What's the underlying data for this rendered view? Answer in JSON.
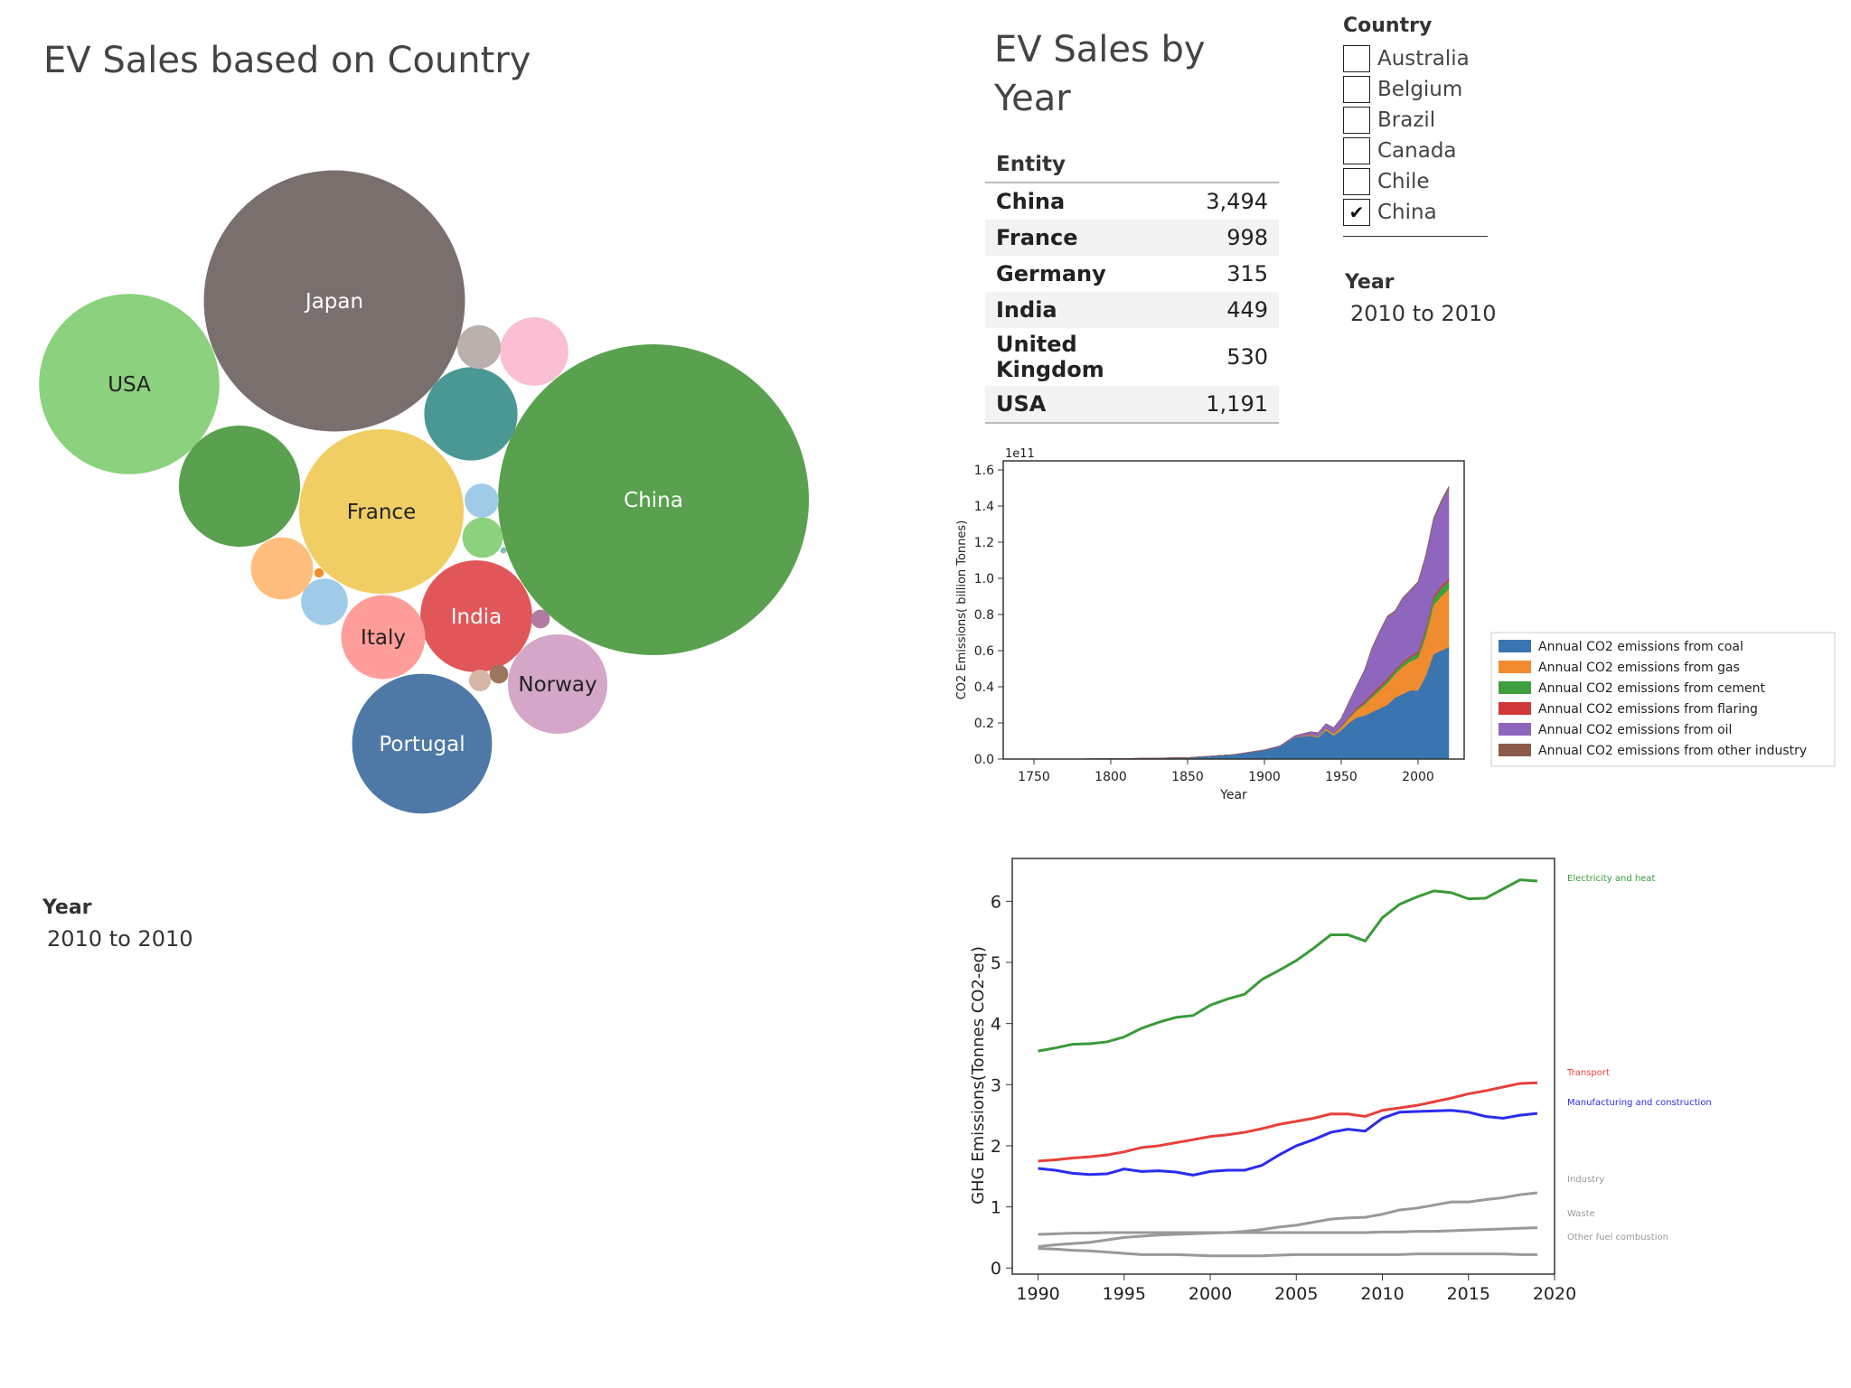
{
  "bubble_panel": {
    "title": "EV Sales based on Country",
    "year_label": "Year",
    "year_value": "2010 to 2010"
  },
  "table_panel": {
    "title_line1": "EV Sales by",
    "title_line2": "Year",
    "column_header": "Entity"
  },
  "country_filter": {
    "label": "Country",
    "items": [
      {
        "name": "Australia",
        "checked": false
      },
      {
        "name": "Belgium",
        "checked": false
      },
      {
        "name": "Brazil",
        "checked": false
      },
      {
        "name": "Canada",
        "checked": false
      },
      {
        "name": "Chile",
        "checked": false
      },
      {
        "name": "China",
        "checked": true
      }
    ],
    "check_glyph": "✔"
  },
  "year_filter": {
    "label": "Year",
    "value": "2010 to 2010"
  },
  "chart_data": [
    {
      "type": "bubble",
      "title": "EV Sales based on Country",
      "bubbles": [
        {
          "label": "China",
          "color": "#59a14f",
          "text_color": "#ffffff",
          "relative_size": 1.0
        },
        {
          "label": "Japan",
          "color": "#79706e",
          "text_color": "#ffffff",
          "relative_size": 0.84
        },
        {
          "label": "USA",
          "color": "#8cd17d",
          "text_color": "#222222",
          "relative_size": 0.58
        },
        {
          "label": "France",
          "color": "#f1ce63",
          "text_color": "#222222",
          "relative_size": 0.53
        },
        {
          "label": "Portugal",
          "color": "#4e79a7",
          "text_color": "#ffffff",
          "relative_size": 0.45
        },
        {
          "label": "India",
          "color": "#e15759",
          "text_color": "#ffffff",
          "relative_size": 0.36
        },
        {
          "label": "Norway",
          "color": "#d4a6c8",
          "text_color": "#222222",
          "relative_size": 0.32
        },
        {
          "label": "Italy",
          "color": "#ff9d9a",
          "text_color": "#222222",
          "relative_size": 0.27
        },
        {
          "label": "",
          "color": "#59a14f",
          "relative_size": 0.39
        },
        {
          "label": "",
          "color": "#499894",
          "relative_size": 0.3
        },
        {
          "label": "",
          "color": "#fabfd2",
          "relative_size": 0.22
        },
        {
          "label": "",
          "color": "#bab0ac",
          "relative_size": 0.14
        },
        {
          "label": "",
          "color": "#ffbe7d",
          "relative_size": 0.2
        },
        {
          "label": "",
          "color": "#a0cbe8",
          "relative_size": 0.15
        },
        {
          "label": "",
          "color": "#a0cbe8",
          "relative_size": 0.11
        },
        {
          "label": "",
          "color": "#8cd17d",
          "relative_size": 0.13
        },
        {
          "label": "",
          "color": "#b07aa1",
          "relative_size": 0.06
        },
        {
          "label": "",
          "color": "#9c755f",
          "relative_size": 0.06
        },
        {
          "label": "",
          "color": "#d7b5a6",
          "relative_size": 0.07
        },
        {
          "label": "",
          "color": "#f28e2b",
          "relative_size": 0.03
        },
        {
          "label": "",
          "color": "#86bcb6",
          "relative_size": 0.02
        }
      ]
    },
    {
      "type": "table",
      "title": "EV Sales by Year",
      "columns": [
        "Entity",
        ""
      ],
      "rows": [
        {
          "entity": "China",
          "value": "3,494"
        },
        {
          "entity": "France",
          "value": "998"
        },
        {
          "entity": "Germany",
          "value": "315"
        },
        {
          "entity": "India",
          "value": "449"
        },
        {
          "entity": "United Kingdom",
          "value": "530"
        },
        {
          "entity": "USA",
          "value": "1,191"
        }
      ]
    },
    {
      "type": "area",
      "stacked": true,
      "title": "",
      "xlabel": "Year",
      "ylabel": "CO2 Emissions( billion Tonnes)",
      "y_offset_label": "1e11",
      "xlim": [
        1730,
        2030
      ],
      "ylim": [
        0,
        1.65
      ],
      "x_ticks": [
        1750,
        1800,
        1850,
        1900,
        1950,
        2000
      ],
      "y_ticks": [
        "0.0",
        "0.2",
        "0.4",
        "0.6",
        "0.8",
        "1.0",
        "1.2",
        "1.4",
        "1.6"
      ],
      "legend_position": "right",
      "x": [
        1750,
        1800,
        1850,
        1880,
        1900,
        1910,
        1920,
        1930,
        1935,
        1940,
        1945,
        1950,
        1955,
        1960,
        1965,
        1970,
        1975,
        1980,
        1985,
        1990,
        1995,
        2000,
        2005,
        2010,
        2015,
        2020
      ],
      "series": [
        {
          "name": "Annual CO2 emissions from coal",
          "color": "#3a75b0",
          "values": [
            0,
            0.002,
            0.008,
            0.025,
            0.05,
            0.07,
            0.12,
            0.13,
            0.12,
            0.16,
            0.13,
            0.16,
            0.2,
            0.23,
            0.24,
            0.26,
            0.28,
            0.3,
            0.34,
            0.36,
            0.38,
            0.38,
            0.46,
            0.58,
            0.6,
            0.62
          ]
        },
        {
          "name": "Annual CO2 emissions from gas",
          "color": "#f08c2f",
          "values": [
            0,
            0,
            0,
            0,
            0,
            0,
            0.002,
            0.005,
            0.006,
            0.008,
            0.01,
            0.015,
            0.025,
            0.04,
            0.06,
            0.08,
            0.1,
            0.12,
            0.13,
            0.15,
            0.16,
            0.18,
            0.22,
            0.27,
            0.3,
            0.32
          ]
        },
        {
          "name": "Annual CO2 emissions from cement",
          "color": "#3f9f3f",
          "values": [
            0,
            0,
            0,
            0,
            0,
            0,
            0,
            0.001,
            0.002,
            0.002,
            0.003,
            0.004,
            0.006,
            0.008,
            0.01,
            0.013,
            0.015,
            0.017,
            0.018,
            0.02,
            0.023,
            0.026,
            0.03,
            0.04,
            0.045,
            0.045
          ]
        },
        {
          "name": "Annual CO2 emissions from flaring",
          "color": "#d03838",
          "values": [
            0,
            0,
            0,
            0,
            0,
            0,
            0,
            0,
            0,
            0.001,
            0.001,
            0.002,
            0.004,
            0.006,
            0.008,
            0.01,
            0.01,
            0.01,
            0.008,
            0.008,
            0.008,
            0.01,
            0.012,
            0.012,
            0.012,
            0.012
          ]
        },
        {
          "name": "Annual CO2 emissions from oil",
          "color": "#8f66bd",
          "values": [
            0,
            0,
            0,
            0,
            0.001,
            0.003,
            0.008,
            0.015,
            0.018,
            0.025,
            0.03,
            0.045,
            0.08,
            0.12,
            0.17,
            0.25,
            0.3,
            0.34,
            0.32,
            0.35,
            0.36,
            0.38,
            0.4,
            0.42,
            0.46,
            0.5
          ]
        },
        {
          "name": "Annual CO2 emissions from other industry",
          "color": "#8c5a4a",
          "values": [
            0,
            0,
            0,
            0,
            0,
            0,
            0,
            0,
            0,
            0,
            0,
            0.001,
            0.002,
            0.002,
            0.003,
            0.004,
            0.004,
            0.005,
            0.005,
            0.006,
            0.006,
            0.007,
            0.008,
            0.01,
            0.012,
            0.013
          ]
        }
      ]
    },
    {
      "type": "line",
      "title": "",
      "xlabel": "",
      "ylabel": "GHG Emissions(Tonnes CO2-eq)",
      "xlim": [
        1988.5,
        2020
      ],
      "ylim": [
        -0.1,
        6.7
      ],
      "x_ticks": [
        1990,
        1995,
        2000,
        2005,
        2010,
        2015,
        2020
      ],
      "y_ticks": [
        0,
        1,
        2,
        3,
        4,
        5,
        6
      ],
      "x": [
        1990,
        1991,
        1992,
        1993,
        1994,
        1995,
        1996,
        1997,
        1998,
        1999,
        2000,
        2001,
        2002,
        2003,
        2004,
        2005,
        2006,
        2007,
        2008,
        2009,
        2010,
        2011,
        2012,
        2013,
        2014,
        2015,
        2016,
        2017,
        2018,
        2019
      ],
      "series": [
        {
          "name": "Electricity and heat",
          "color": "#3a9a3a",
          "values": [
            3.55,
            3.6,
            3.66,
            3.67,
            3.7,
            3.78,
            3.92,
            4.02,
            4.1,
            4.13,
            4.3,
            4.4,
            4.48,
            4.72,
            4.87,
            5.03,
            5.23,
            5.45,
            5.45,
            5.35,
            5.73,
            5.95,
            6.07,
            6.17,
            6.14,
            6.04,
            6.05,
            6.2,
            6.35,
            6.33
          ]
        },
        {
          "name": "Transport",
          "color": "#e8403a",
          "values": [
            1.75,
            1.77,
            1.8,
            1.82,
            1.85,
            1.9,
            1.97,
            2.0,
            2.05,
            2.1,
            2.15,
            2.18,
            2.22,
            2.28,
            2.35,
            2.4,
            2.45,
            2.52,
            2.52,
            2.48,
            2.58,
            2.62,
            2.66,
            2.72,
            2.78,
            2.85,
            2.9,
            2.96,
            3.02,
            3.03
          ]
        },
        {
          "name": "Manufacturing and construction",
          "color": "#2b2bf0",
          "values": [
            1.63,
            1.6,
            1.55,
            1.53,
            1.54,
            1.62,
            1.58,
            1.59,
            1.57,
            1.52,
            1.58,
            1.6,
            1.6,
            1.68,
            1.85,
            2.0,
            2.1,
            2.22,
            2.27,
            2.24,
            2.45,
            2.55,
            2.56,
            2.57,
            2.58,
            2.55,
            2.48,
            2.45,
            2.5,
            2.53
          ]
        },
        {
          "name": "Industry",
          "color": "#999999",
          "values": [
            0.35,
            0.38,
            0.4,
            0.42,
            0.46,
            0.5,
            0.52,
            0.54,
            0.55,
            0.56,
            0.57,
            0.58,
            0.6,
            0.63,
            0.67,
            0.7,
            0.75,
            0.8,
            0.82,
            0.83,
            0.88,
            0.95,
            0.98,
            1.03,
            1.08,
            1.08,
            1.12,
            1.15,
            1.2,
            1.23
          ]
        },
        {
          "name": "Waste",
          "color": "#999999",
          "values": [
            0.55,
            0.56,
            0.57,
            0.57,
            0.58,
            0.58,
            0.58,
            0.58,
            0.58,
            0.58,
            0.58,
            0.58,
            0.58,
            0.58,
            0.58,
            0.58,
            0.58,
            0.58,
            0.58,
            0.58,
            0.59,
            0.59,
            0.6,
            0.6,
            0.61,
            0.62,
            0.63,
            0.64,
            0.65,
            0.66
          ]
        },
        {
          "name": "Other fuel combustion",
          "color": "#999999",
          "values": [
            0.32,
            0.31,
            0.29,
            0.28,
            0.26,
            0.24,
            0.22,
            0.22,
            0.22,
            0.21,
            0.2,
            0.2,
            0.2,
            0.2,
            0.21,
            0.22,
            0.22,
            0.22,
            0.22,
            0.22,
            0.22,
            0.22,
            0.23,
            0.23,
            0.23,
            0.23,
            0.23,
            0.23,
            0.22,
            0.22
          ]
        }
      ]
    }
  ]
}
